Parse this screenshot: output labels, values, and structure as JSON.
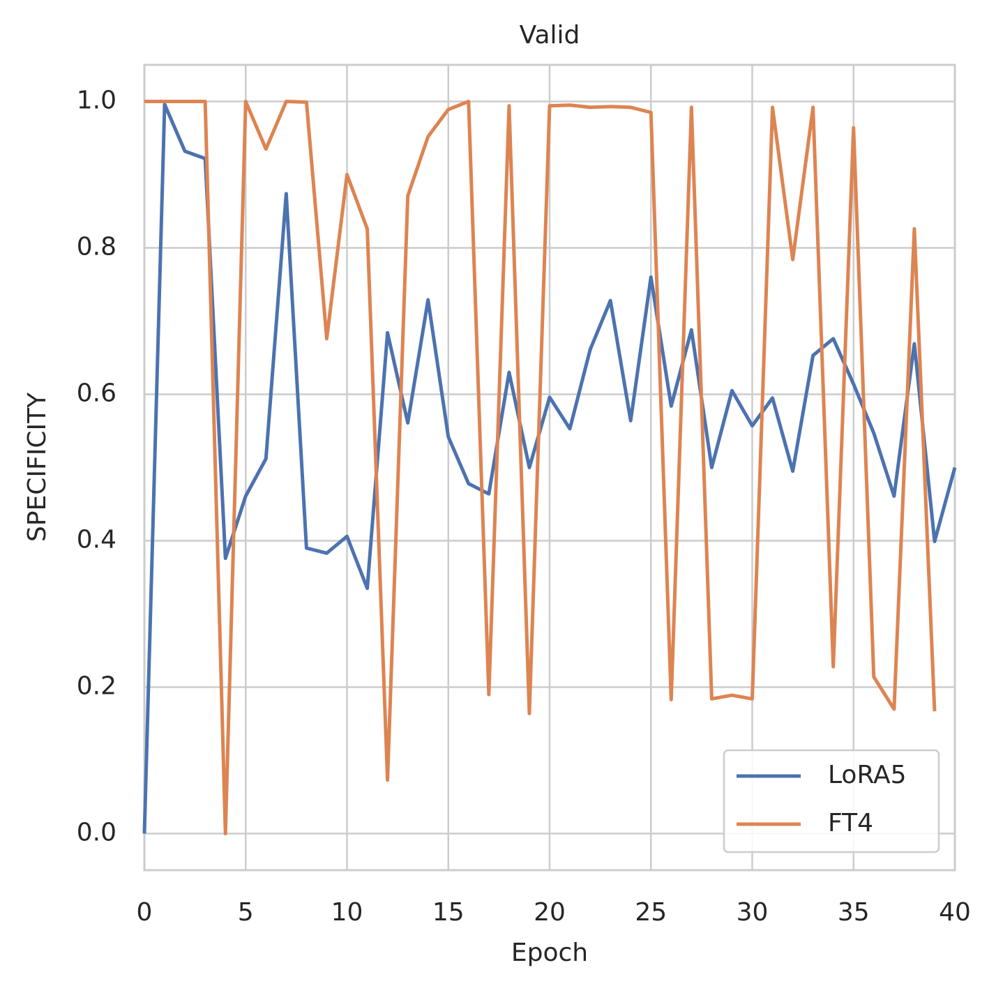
{
  "chart_data": {
    "type": "line",
    "title": "Valid",
    "x_label": "Epoch",
    "y_label": "SPECIFICITY",
    "x": [
      0,
      1,
      2,
      3,
      4,
      5,
      6,
      7,
      8,
      9,
      10,
      11,
      12,
      13,
      14,
      15,
      16,
      17,
      18,
      19,
      20,
      21,
      22,
      23,
      24,
      25,
      26,
      27,
      28,
      29,
      30,
      31,
      32,
      33,
      34,
      35,
      36,
      37,
      38,
      39,
      40
    ],
    "series": [
      {
        "name": "LoRA5",
        "color": "#4c72b0",
        "values": [
          0.0,
          0.996,
          0.932,
          0.922,
          0.376,
          0.461,
          0.512,
          0.874,
          0.39,
          0.383,
          0.406,
          0.335,
          0.684,
          0.561,
          0.729,
          0.542,
          0.478,
          0.464,
          0.63,
          0.5,
          0.596,
          0.553,
          0.661,
          0.728,
          0.564,
          0.76,
          0.584,
          0.688,
          0.5,
          0.605,
          0.557,
          0.595,
          0.495,
          0.653,
          0.676,
          0.614,
          0.547,
          0.461,
          0.669,
          0.399,
          0.5
        ]
      },
      {
        "name": "FT4",
        "color": "#dd8452",
        "values": [
          1.0,
          1.0,
          1.0,
          1.0,
          0.0,
          1.0,
          0.935,
          1.0,
          0.999,
          0.676,
          0.9,
          0.826,
          0.073,
          0.871,
          0.952,
          0.989,
          1.0,
          0.19,
          0.994,
          0.164,
          0.994,
          0.995,
          0.992,
          0.993,
          0.992,
          0.985,
          0.183,
          0.992,
          0.184,
          0.189,
          0.184,
          0.992,
          0.784,
          0.992,
          0.228,
          0.964,
          0.214,
          0.17,
          0.826,
          0.167,
          null
        ]
      }
    ],
    "xlim": [
      0,
      40
    ],
    "xticks": [
      0,
      5,
      10,
      15,
      20,
      25,
      30,
      35,
      40
    ],
    "ylim": [
      -0.05,
      1.05
    ],
    "yticks": [
      {
        "value": 0,
        "label": "0.0"
      },
      {
        "value": 0.2,
        "label": "0.2"
      },
      {
        "value": 0.4,
        "label": "0.4"
      },
      {
        "value": 0.6,
        "label": "0.6"
      },
      {
        "value": 0.8,
        "label": "0.8"
      },
      {
        "value": 1,
        "label": "1.0"
      }
    ],
    "grid": true,
    "legend": "lower right"
  }
}
